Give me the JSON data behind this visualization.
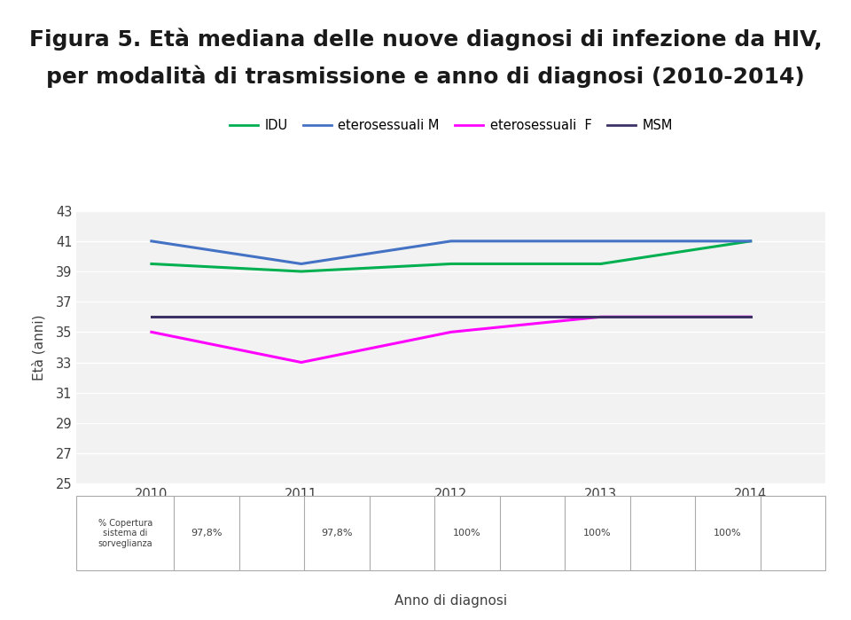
{
  "title_line1": "Figura 5. Età mediana delle nuove diagnosi di infezione da HIV,",
  "title_line2": "per modalità di trasmissione e anno di diagnosi (2010-2014)",
  "years": [
    2010,
    2011,
    2012,
    2013,
    2014
  ],
  "IDU": [
    39.5,
    39.0,
    39.5,
    39.5,
    41.0
  ],
  "eterosessuali_M": [
    41.0,
    39.5,
    41.0,
    41.0,
    41.0
  ],
  "eterosessuali_F": [
    35.0,
    33.0,
    35.0,
    36.0,
    36.0
  ],
  "MSM": [
    36.0,
    36.0,
    36.0,
    36.0,
    36.0
  ],
  "color_IDU": "#00b050",
  "color_etero_M": "#4472c4",
  "color_etero_F": "#ff00ff",
  "color_MSM": "#3d3166",
  "ylabel": "Età (anni)",
  "xlabel": "Anno di diagnosi",
  "ylim": [
    25,
    43
  ],
  "yticks": [
    25,
    27,
    29,
    31,
    33,
    35,
    37,
    39,
    41,
    43
  ],
  "legend_labels": [
    "IDU",
    "eterosessuali M",
    "eterosessuali  F",
    "MSM"
  ],
  "background_color": "#ffffff",
  "plot_bg_color": "#f2f2f2",
  "line_width": 2.2,
  "title_fontsize": 18,
  "axis_fontsize": 11,
  "tick_fontsize": 10.5,
  "table_row_label": "% Copertura\nsistema di\nsorveglianza",
  "table_vals": [
    "97,8%",
    "",
    "97,8%",
    "",
    "100%",
    "",
    "100%",
    "",
    "100%",
    ""
  ]
}
